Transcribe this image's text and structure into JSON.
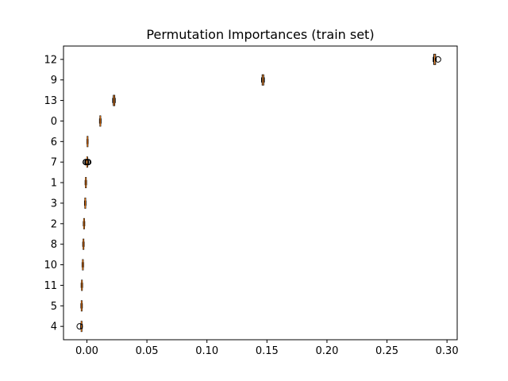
{
  "chart_data": {
    "type": "boxplot",
    "orientation": "horizontal",
    "title": "Permutation Importances (train set)",
    "xlabel": "",
    "ylabel": "",
    "xlim": [
      -0.0195,
      0.3085
    ],
    "xticks": [
      0.0,
      0.05,
      0.1,
      0.15,
      0.2,
      0.25,
      0.3
    ],
    "xtick_labels": [
      "0.00",
      "0.05",
      "0.10",
      "0.15",
      "0.20",
      "0.25",
      "0.30"
    ],
    "grid": false,
    "box_color": "#000000",
    "median_color": "#ff7f0e",
    "categories": [
      "12",
      "9",
      "13",
      "0",
      "6",
      "7",
      "1",
      "3",
      "2",
      "8",
      "10",
      "11",
      "5",
      "4"
    ],
    "boxes": [
      {
        "label": "12",
        "whisker_low": 0.2885,
        "q1": 0.289,
        "median": 0.2898,
        "q3": 0.2905,
        "whisker_high": 0.291,
        "outliers": [
          0.2925
        ]
      },
      {
        "label": "9",
        "whisker_low": 0.1455,
        "q1": 0.146,
        "median": 0.1467,
        "q3": 0.1473,
        "whisker_high": 0.1478,
        "outliers": []
      },
      {
        "label": "13",
        "whisker_low": 0.0215,
        "q1": 0.022,
        "median": 0.0226,
        "q3": 0.0232,
        "whisker_high": 0.0236,
        "outliers": []
      },
      {
        "label": "0",
        "whisker_low": 0.0105,
        "q1": 0.0108,
        "median": 0.0111,
        "q3": 0.0115,
        "whisker_high": 0.0118,
        "outliers": []
      },
      {
        "label": "6",
        "whisker_low": 0.0,
        "q1": 0.0002,
        "median": 0.0005,
        "q3": 0.0008,
        "whisker_high": 0.001,
        "outliers": []
      },
      {
        "label": "7",
        "whisker_low": -0.0003,
        "q1": -0.0001,
        "median": 0.0,
        "q3": 0.0001,
        "whisker_high": 0.0003,
        "outliers": [
          -0.001,
          -0.0007,
          0.0005,
          0.0008,
          0.0011
        ]
      },
      {
        "label": "1",
        "whisker_low": -0.0015,
        "q1": -0.0012,
        "median": -0.0009,
        "q3": -0.0006,
        "whisker_high": -0.0003,
        "outliers": []
      },
      {
        "label": "3",
        "whisker_low": -0.002,
        "q1": -0.0017,
        "median": -0.0014,
        "q3": -0.0011,
        "whisker_high": -0.0008,
        "outliers": []
      },
      {
        "label": "2",
        "whisker_low": -0.003,
        "q1": -0.0027,
        "median": -0.0024,
        "q3": -0.0021,
        "whisker_high": -0.0018,
        "outliers": []
      },
      {
        "label": "8",
        "whisker_low": -0.0035,
        "q1": -0.0032,
        "median": -0.0029,
        "q3": -0.0026,
        "whisker_high": -0.0023,
        "outliers": []
      },
      {
        "label": "10",
        "whisker_low": -0.004,
        "q1": -0.0037,
        "median": -0.0034,
        "q3": -0.0031,
        "whisker_high": -0.0028,
        "outliers": []
      },
      {
        "label": "11",
        "whisker_low": -0.0048,
        "q1": -0.0045,
        "median": -0.0042,
        "q3": -0.0039,
        "whisker_high": -0.0036,
        "outliers": []
      },
      {
        "label": "5",
        "whisker_low": -0.005,
        "q1": -0.0047,
        "median": -0.0044,
        "q3": -0.0041,
        "whisker_high": -0.0038,
        "outliers": []
      },
      {
        "label": "4",
        "whisker_low": -0.0052,
        "q1": -0.0048,
        "median": -0.0045,
        "q3": -0.0042,
        "whisker_high": -0.0038,
        "outliers": [
          -0.006
        ]
      }
    ]
  }
}
